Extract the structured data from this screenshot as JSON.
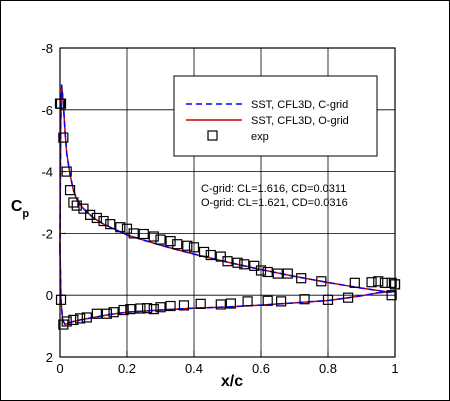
{
  "chart_data": {
    "type": "line",
    "xlabel": "x/c",
    "ylabel": "C",
    "ylabel_subscript": "p",
    "xlim": [
      0,
      1
    ],
    "ylim": [
      2,
      -8
    ],
    "y_inverted": true,
    "grid": true,
    "x_ticks": [
      "0",
      "0.2",
      "0.4",
      "0.6",
      "0.8",
      "1"
    ],
    "x_tick_values": [
      0,
      0.2,
      0.4,
      0.6,
      0.8,
      1
    ],
    "y_ticks": [
      "-8",
      "-6",
      "-4",
      "-2",
      "0",
      "2"
    ],
    "y_tick_values": [
      -8,
      -6,
      -4,
      -2,
      0,
      2
    ],
    "legend_position": "top-right",
    "annotations": [
      "C-grid: CL=1.616, CD=0.0311",
      "O-grid: CL=1.621, CD=0.0316"
    ],
    "series": [
      {
        "name": "SST, CFL3D, C-grid",
        "style": "dashed",
        "color": "#0000ff",
        "upper": {
          "x": [
            0.0,
            0.002,
            0.005,
            0.01,
            0.015,
            0.02,
            0.03,
            0.04,
            0.05,
            0.07,
            0.1,
            0.13,
            0.17,
            0.2,
            0.25,
            0.3,
            0.35,
            0.4,
            0.45,
            0.5,
            0.55,
            0.6,
            0.65,
            0.7,
            0.75,
            0.8,
            0.85,
            0.9,
            0.95,
            0.98,
            1.0
          ],
          "y": [
            -1.5,
            -5.5,
            -6.8,
            -6.2,
            -5.3,
            -4.6,
            -3.9,
            -3.4,
            -3.1,
            -2.8,
            -2.5,
            -2.3,
            -2.1,
            -1.95,
            -1.78,
            -1.62,
            -1.47,
            -1.33,
            -1.2,
            -1.07,
            -0.95,
            -0.83,
            -0.72,
            -0.61,
            -0.51,
            -0.41,
            -0.32,
            -0.23,
            -0.15,
            -0.1,
            -0.12
          ]
        },
        "lower": {
          "x": [
            0.0,
            0.003,
            0.008,
            0.015,
            0.025,
            0.04,
            0.06,
            0.1,
            0.15,
            0.2,
            0.3,
            0.4,
            0.5,
            0.6,
            0.7,
            0.8,
            0.85,
            0.9,
            0.95,
            1.0
          ],
          "y": [
            -1.5,
            0.2,
            0.8,
            0.95,
            0.9,
            0.85,
            0.8,
            0.72,
            0.62,
            0.55,
            0.48,
            0.42,
            0.38,
            0.32,
            0.25,
            0.17,
            0.1,
            0.02,
            -0.08,
            -0.12
          ]
        }
      },
      {
        "name": "SST, CFL3D, O-grid",
        "style": "solid",
        "color": "#cc0000",
        "upper": {
          "x": [
            0.0,
            0.002,
            0.005,
            0.01,
            0.015,
            0.02,
            0.03,
            0.04,
            0.05,
            0.07,
            0.1,
            0.13,
            0.17,
            0.2,
            0.25,
            0.3,
            0.35,
            0.4,
            0.45,
            0.5,
            0.55,
            0.6,
            0.65,
            0.7,
            0.75,
            0.8,
            0.85,
            0.9,
            0.95,
            0.98,
            1.0
          ],
          "y": [
            -1.5,
            -5.5,
            -6.8,
            -6.2,
            -5.3,
            -4.6,
            -3.9,
            -3.4,
            -3.1,
            -2.8,
            -2.5,
            -2.3,
            -2.1,
            -1.95,
            -1.78,
            -1.62,
            -1.47,
            -1.33,
            -1.2,
            -1.07,
            -0.95,
            -0.83,
            -0.72,
            -0.61,
            -0.51,
            -0.41,
            -0.32,
            -0.23,
            -0.15,
            -0.1,
            -0.12
          ]
        },
        "lower": {
          "x": [
            0.0,
            0.003,
            0.008,
            0.015,
            0.025,
            0.04,
            0.06,
            0.1,
            0.15,
            0.2,
            0.3,
            0.4,
            0.5,
            0.6,
            0.7,
            0.8,
            0.85,
            0.9,
            0.95,
            1.0
          ],
          "y": [
            -1.5,
            0.2,
            0.8,
            0.95,
            0.9,
            0.85,
            0.8,
            0.72,
            0.62,
            0.55,
            0.48,
            0.42,
            0.38,
            0.32,
            0.25,
            0.17,
            0.1,
            0.02,
            -0.08,
            -0.12
          ]
        }
      },
      {
        "name": "exp",
        "style": "markers",
        "marker": "square",
        "color": "#000000",
        "x": [
          0.0,
          0.003,
          0.01,
          0.02,
          0.03,
          0.04,
          0.05,
          0.07,
          0.09,
          0.11,
          0.13,
          0.15,
          0.18,
          0.2,
          0.22,
          0.25,
          0.28,
          0.3,
          0.33,
          0.35,
          0.38,
          0.4,
          0.43,
          0.45,
          0.48,
          0.5,
          0.53,
          0.55,
          0.58,
          0.6,
          0.62,
          0.65,
          0.68,
          0.72,
          0.78,
          0.88,
          0.93,
          0.95,
          0.97,
          0.99,
          1.0,
          0.003,
          0.01,
          0.02,
          0.04,
          0.06,
          0.08,
          0.11,
          0.14,
          0.16,
          0.19,
          0.21,
          0.24,
          0.26,
          0.28,
          0.3,
          0.33,
          0.37,
          0.42,
          0.48,
          0.51,
          0.56,
          0.62,
          0.66,
          0.73,
          0.8,
          0.86,
          0.99,
          1.0
        ],
        "y": [
          -6.2,
          -6.2,
          -5.1,
          -4.0,
          -3.4,
          -3.0,
          -2.9,
          -2.8,
          -2.6,
          -2.5,
          -2.4,
          -2.3,
          -2.2,
          -2.15,
          -2.0,
          -1.98,
          -1.9,
          -1.8,
          -1.75,
          -1.65,
          -1.6,
          -1.55,
          -1.4,
          -1.3,
          -1.25,
          -1.1,
          -1.05,
          -1.0,
          -0.95,
          -0.8,
          -0.75,
          -0.7,
          -0.7,
          -0.55,
          -0.45,
          -0.4,
          -0.42,
          -0.45,
          -0.4,
          -0.4,
          -0.35,
          0.15,
          0.95,
          0.85,
          0.8,
          0.75,
          0.72,
          0.6,
          0.6,
          0.55,
          0.48,
          0.45,
          0.43,
          0.42,
          0.45,
          0.39,
          0.35,
          0.33,
          0.28,
          0.3,
          0.27,
          0.2,
          0.18,
          0.2,
          0.13,
          0.15,
          0.08,
          0.0,
          -0.35
        ]
      }
    ]
  }
}
